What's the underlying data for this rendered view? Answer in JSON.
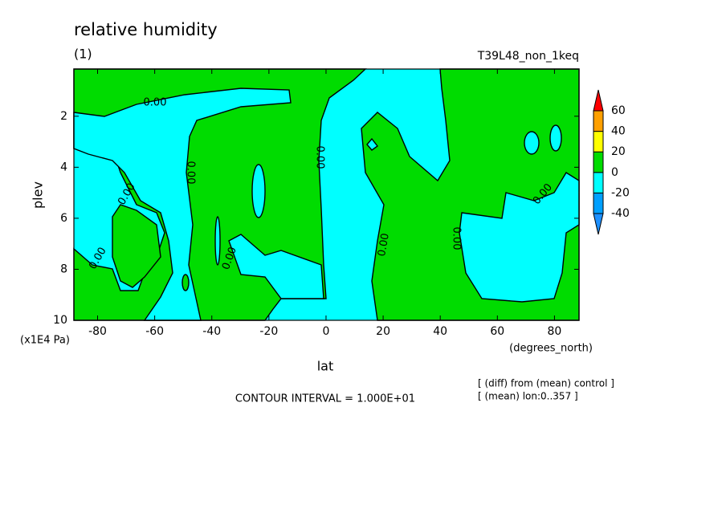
{
  "chart_data": {
    "type": "contour",
    "title": "relative humidity",
    "subtitle": "(1)",
    "run_label": "T39L48_non_1keq",
    "x_label": "lat",
    "x_unit": "(degrees_north)",
    "y_label": "plev",
    "y_unit": "(x1E4 Pa)",
    "xlim": [
      -88.3,
      88.6
    ],
    "xticks": [
      -80,
      -60,
      -40,
      -20,
      0,
      20,
      40,
      60,
      80
    ],
    "ylim": [
      10,
      0.15
    ],
    "yticks": [
      2,
      4,
      6,
      8,
      10
    ],
    "contour_interval": "CONTOUR INTERVAL = 1.000E+01",
    "notes": [
      "[ (diff) from (mean) control ]",
      "[ (mean) lon:0..357 ]"
    ],
    "contour_labels": [
      "0.00",
      "0.00",
      "0.00",
      "0.00",
      "0.00",
      "0.00",
      "0.00",
      "0.00",
      "0.00"
    ],
    "colorbar": {
      "levels": [
        -40,
        -20,
        0,
        20,
        40,
        60
      ],
      "colors": [
        "#1e90ff",
        "#00a0ff",
        "#00ffff",
        "#00dc00",
        "#ffff00",
        "#ffa000",
        "#ff0000"
      ]
    }
  }
}
